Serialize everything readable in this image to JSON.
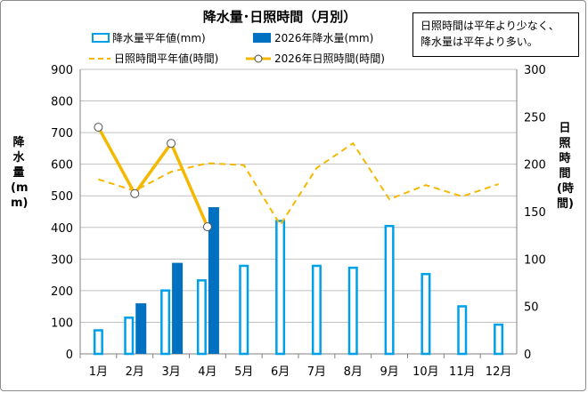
{
  "chart_data": {
    "type": "bar",
    "title": "降水量･日照時間（月別）",
    "note_lines": [
      "日照時間は平年より少なく、",
      "降水量は平年より多い。"
    ],
    "ylabel_left": "降水量(mm)",
    "ylabel_right": "日照時間(時間)",
    "categories": [
      "1月",
      "2月",
      "3月",
      "4月",
      "5月",
      "6月",
      "7月",
      "8月",
      "9月",
      "10月",
      "11月",
      "12月"
    ],
    "ylim_left": [
      0,
      900
    ],
    "ylim_right": [
      0,
      300
    ],
    "yticks_left": [
      "0",
      "100",
      "200",
      "300",
      "400",
      "500",
      "600",
      "700",
      "800",
      "900"
    ],
    "yticks_right": [
      "0",
      "50",
      "100",
      "150",
      "200",
      "250",
      "300"
    ],
    "grid": true,
    "legend_position": "top",
    "series": [
      {
        "name": "降水量平年値(mm)",
        "kind": "bar",
        "axis": "left",
        "color": "#00a0e9",
        "style": "outline",
        "values": [
          78,
          118,
          204,
          236,
          282,
          424,
          282,
          276,
          408,
          256,
          154,
          96
        ]
      },
      {
        "name": "2026年降水量(mm)",
        "kind": "bar",
        "axis": "left",
        "color": "#0070c0",
        "style": "filled",
        "values": [
          null,
          160,
          288,
          464,
          null,
          null,
          null,
          null,
          null,
          null,
          null,
          null
        ]
      },
      {
        "name": "日照時間平年値(時間)",
        "kind": "line",
        "axis": "right",
        "color": "#f5b800",
        "style": "dashed",
        "values": [
          184,
          172,
          192,
          201,
          199,
          136,
          196,
          222,
          163,
          178,
          166,
          179
        ]
      },
      {
        "name": "2026年日照時間(時間)",
        "kind": "line",
        "axis": "right",
        "color": "#f5b800",
        "style": "solid-markers",
        "values": [
          239,
          169,
          222,
          134,
          null,
          null,
          null,
          null,
          null,
          null,
          null,
          null
        ]
      }
    ]
  }
}
